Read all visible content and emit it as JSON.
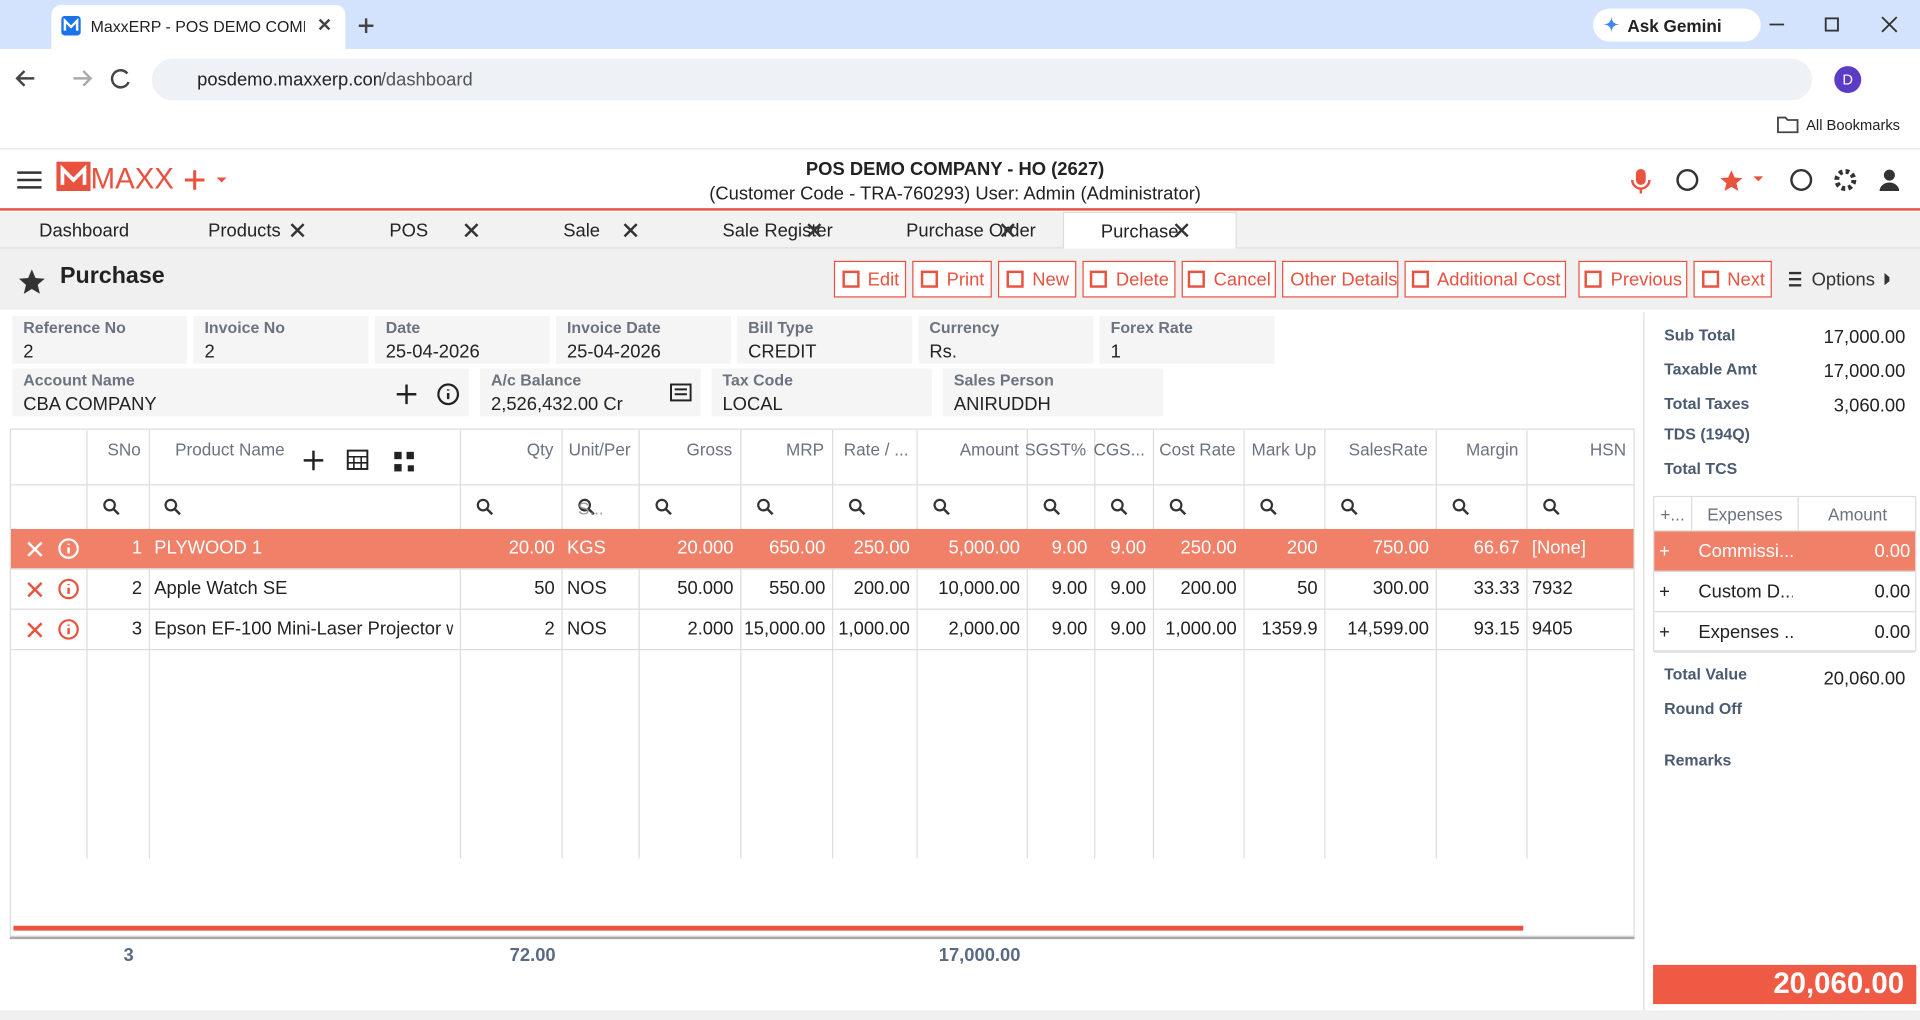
{
  "browser": {
    "tab_title": "MaxxERP - POS DEMO COMPANY",
    "ask_gemini": "Ask Gemini",
    "address_host": "posdemo.maxxerp.com",
    "address_path": "/dashboard",
    "avatar": "D",
    "bookmarks": "All Bookmarks"
  },
  "header": {
    "logo": "MAXX",
    "company": "POS DEMO COMPANY - HO (2627)",
    "subline": "(Customer Code - TRA-760293) User: Admin (Administrator)"
  },
  "tabs": [
    "Dashboard",
    "Products",
    "POS",
    "Sale",
    "Sale Register",
    "Purchase Order",
    "Purchase"
  ],
  "page_title": "Purchase",
  "actions": [
    "Edit",
    "Print",
    "New",
    "Delete",
    "Cancel",
    "Other Details",
    "Additional Cost",
    "Previous",
    "Next",
    "Options"
  ],
  "fields_row1": [
    {
      "label": "Reference No",
      "value": "2"
    },
    {
      "label": "Invoice No",
      "value": "2"
    },
    {
      "label": "Date",
      "value": "25-04-2026"
    },
    {
      "label": "Invoice Date",
      "value": "25-04-2026"
    },
    {
      "label": "Bill Type",
      "value": "CREDIT"
    },
    {
      "label": "Currency",
      "value": "Rs."
    },
    {
      "label": "Forex Rate",
      "value": "1"
    }
  ],
  "fields_row2": [
    {
      "label": "Account Name",
      "value": "CBA COMPANY"
    },
    {
      "label": "A/c Balance",
      "value": "2,526,432.00 Cr"
    },
    {
      "label": "Tax Code",
      "value": "LOCAL"
    },
    {
      "label": "Sales Person",
      "value": "ANIRUDDH"
    }
  ],
  "grid": {
    "columns": [
      "SNo",
      "Product Name",
      "Qty",
      "Unit/Per",
      "Gross",
      "MRP",
      "Rate / ...",
      "Amount",
      "SGST%",
      "CGS...",
      "Cost Rate",
      "Mark Up",
      "SalesRate",
      "Margin",
      "HSN"
    ],
    "unit_filter": "S...",
    "rows": [
      [
        "1",
        "PLYWOOD 1",
        "20.00",
        "KGS",
        "20.000",
        "650.00",
        "250.00",
        "5,000.00",
        "9.00",
        "9.00",
        "250.00",
        "200",
        "750.00",
        "66.67",
        "[None]"
      ],
      [
        "2",
        "Apple Watch SE",
        "50",
        "NOS",
        "50.000",
        "550.00",
        "200.00",
        "10,000.00",
        "9.00",
        "9.00",
        "200.00",
        "50",
        "300.00",
        "33.33",
        "7932"
      ],
      [
        "3",
        "Epson EF-100 Mini-Laser Projector w...",
        "2",
        "NOS",
        "2.000",
        "15,000.00",
        "1,000.00",
        "2,000.00",
        "9.00",
        "9.00",
        "1,000.00",
        "1359.9",
        "14,599.00",
        "93.15",
        "9405"
      ]
    ],
    "totals": {
      "sno": "3",
      "qty": "72.00",
      "amount": "17,000.00"
    }
  },
  "summary": [
    {
      "label": "Sub Total",
      "value": "17,000.00"
    },
    {
      "label": "Taxable Amt",
      "value": "17,000.00"
    },
    {
      "label": "Total Taxes",
      "value": "3,060.00"
    },
    {
      "label": "TDS (194Q)"
    },
    {
      "label": "Total TCS"
    }
  ],
  "expenses": {
    "columns": [
      "+...",
      "Expenses",
      "Amount"
    ],
    "rows": [
      [
        "+",
        "Commissi...",
        "0.00"
      ],
      [
        "+",
        "Custom D...",
        "0.00"
      ],
      [
        "+",
        "Expenses ...",
        "0.00"
      ]
    ]
  },
  "total_value": {
    "label": "Total Value",
    "value": "20,060.00"
  },
  "round_off": "Round Off",
  "remarks": "Remarks",
  "grand_total": "20,060.00"
}
